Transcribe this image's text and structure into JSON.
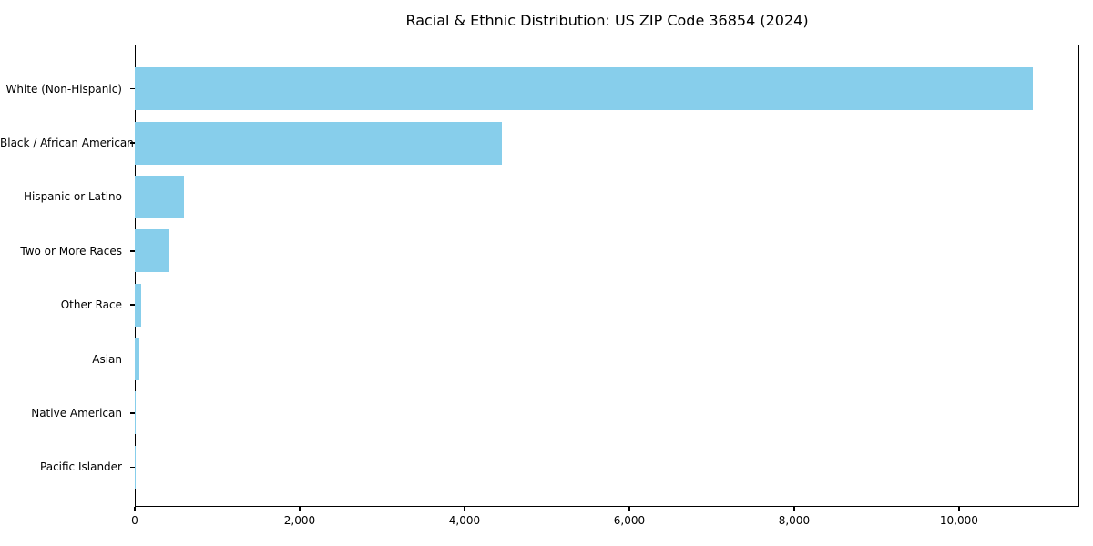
{
  "chart_data": {
    "type": "bar",
    "orientation": "horizontal",
    "title": "Racial & Ethnic Distribution: US ZIP Code 36854 (2024)",
    "categories": [
      "White (Non-Hispanic)",
      "Black / African American",
      "Hispanic or Latino",
      "Two or More Races",
      "Other Race",
      "Asian",
      "Native American",
      "Pacific Islander"
    ],
    "values": [
      10900,
      4450,
      600,
      410,
      80,
      55,
      10,
      5
    ],
    "xlabel": "",
    "ylabel": "",
    "xlim": [
      0,
      11460
    ],
    "xticks": [
      0,
      2000,
      4000,
      6000,
      8000,
      10000
    ],
    "xtick_labels": [
      "0",
      "2,000",
      "4,000",
      "6,000",
      "8,000",
      "10,000"
    ],
    "bar_color": "#87CEEB",
    "axis_color": "#000000",
    "grid": false,
    "legend": null
  }
}
